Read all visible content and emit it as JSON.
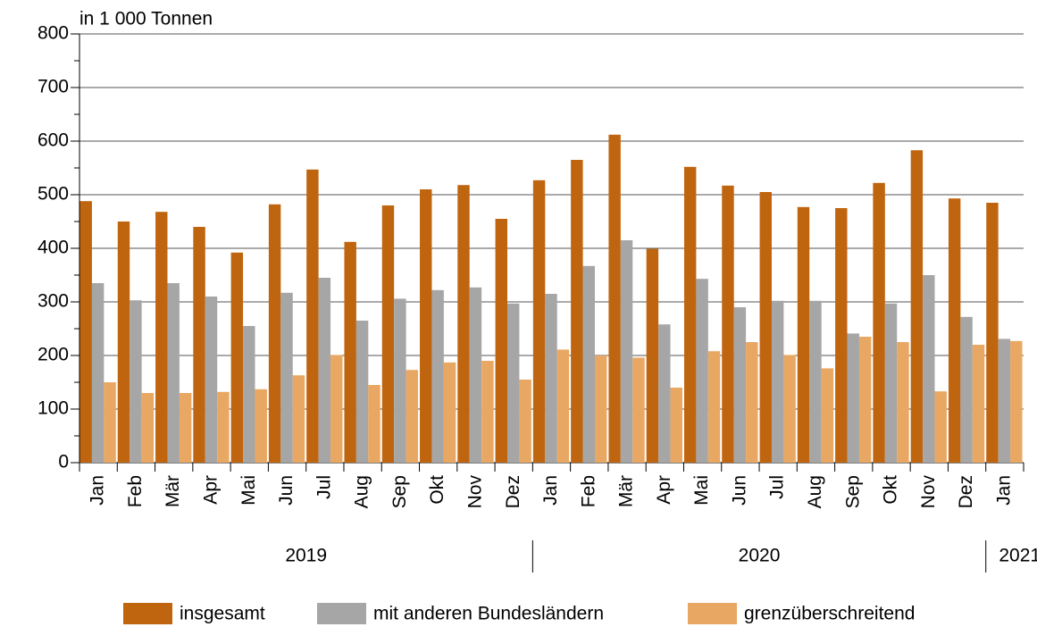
{
  "chart_data": {
    "type": "bar",
    "unit_label": "in 1 000 Tonnen",
    "categories": [
      "Jan",
      "Feb",
      "Mär",
      "Apr",
      "Mai",
      "Jun",
      "Jul",
      "Aug",
      "Sep",
      "Okt",
      "Nov",
      "Dez",
      "Jan",
      "Feb",
      "Mär",
      "Apr",
      "Mai",
      "Jun",
      "Jul",
      "Aug",
      "Sep",
      "Okt",
      "Nov",
      "Dez",
      "Jan"
    ],
    "x_groups": [
      {
        "label": "2019",
        "count": 12
      },
      {
        "label": "2020",
        "count": 12
      },
      {
        "label": "2021",
        "count": 1
      }
    ],
    "series": [
      {
        "name": "insgesamt",
        "color": "#c0650f",
        "values": [
          488,
          450,
          468,
          440,
          392,
          482,
          547,
          412,
          480,
          510,
          518,
          455,
          527,
          565,
          612,
          399,
          552,
          517,
          505,
          477,
          475,
          522,
          583,
          493,
          485
        ]
      },
      {
        "name": "mit anderen Bundesländern",
        "color": "#a6a6a6",
        "values": [
          335,
          303,
          335,
          310,
          255,
          317,
          345,
          265,
          306,
          322,
          327,
          297,
          315,
          367,
          415,
          258,
          343,
          290,
          302,
          302,
          241,
          297,
          350,
          272,
          231
        ]
      },
      {
        "name": "grenzüberschreitend",
        "color": "#e8a864",
        "values": [
          150,
          130,
          130,
          132,
          137,
          163,
          201,
          145,
          173,
          187,
          190,
          155,
          211,
          200,
          196,
          140,
          208,
          225,
          201,
          176,
          235,
          225,
          133,
          220,
          227
        ]
      }
    ],
    "ylim": [
      0,
      800
    ],
    "yticks": [
      0,
      100,
      200,
      300,
      400,
      500,
      600,
      700,
      800
    ],
    "grid": true
  }
}
